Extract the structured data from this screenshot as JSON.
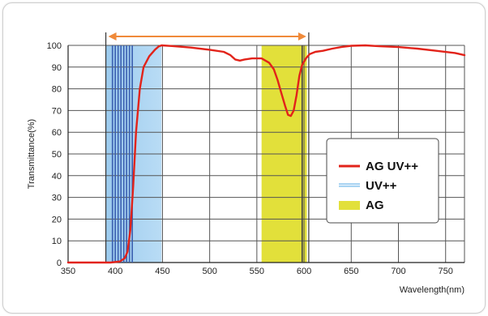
{
  "chart_data": {
    "type": "line",
    "xlabel": "Wavelength(nm)",
    "ylabel": "Transmittance(%)",
    "xlim": [
      350,
      770
    ],
    "ylim": [
      0,
      100
    ],
    "x_ticks": [
      350,
      400,
      450,
      500,
      550,
      600,
      650,
      700,
      750
    ],
    "y_ticks": [
      0,
      10,
      20,
      30,
      40,
      50,
      60,
      70,
      80,
      90,
      100
    ],
    "grid": true,
    "legend_position": "right",
    "series": [
      {
        "name": "AG UV++",
        "type": "line",
        "color": "#e2231a",
        "x": [
          350,
          380,
          395,
          405,
          410,
          413,
          416,
          419,
          422,
          426,
          430,
          436,
          442,
          446,
          449,
          460,
          480,
          500,
          515,
          522,
          527,
          532,
          537,
          545,
          555,
          563,
          568,
          572,
          576,
          580,
          583,
          586,
          589,
          592,
          595,
          598,
          602,
          606,
          612,
          620,
          630,
          640,
          650,
          665,
          680,
          700,
          720,
          740,
          760,
          770
        ],
        "y": [
          0,
          0,
          0,
          0.5,
          2,
          5,
          15,
          35,
          60,
          80,
          90,
          95,
          98,
          99.5,
          100,
          99.7,
          99,
          98,
          97,
          95.5,
          93.5,
          93,
          93.5,
          94,
          94,
          92,
          89,
          84,
          78,
          72,
          68,
          67.5,
          70,
          77,
          86,
          91,
          94,
          96,
          97,
          97.5,
          98.5,
          99.3,
          99.8,
          100,
          99.6,
          99.2,
          98.5,
          97.5,
          96.5,
          95.5
        ]
      },
      {
        "name": "UV++",
        "type": "band",
        "color": "#a9d4f2",
        "x_range": [
          390,
          449
        ],
        "line_x": [
          397,
          400,
          403,
          406,
          409,
          412,
          415,
          418
        ]
      },
      {
        "name": "AG",
        "type": "band",
        "color": "#e2e03a",
        "x_range": [
          555,
          603
        ],
        "line_x": [
          598
        ]
      }
    ],
    "annotations": [
      {
        "type": "double-arrow",
        "x_range": [
          390,
          605
        ],
        "color": "#f08a3a"
      },
      {
        "type": "guide-line",
        "x": 390
      },
      {
        "type": "guide-line",
        "x": 605
      }
    ]
  }
}
